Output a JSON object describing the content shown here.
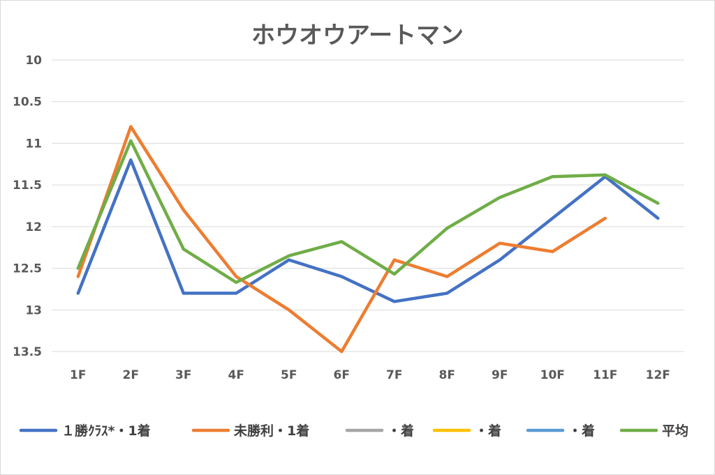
{
  "chart_data": {
    "type": "line",
    "title": "ホウオウアートマン",
    "categories": [
      "1F",
      "2F",
      "3F",
      "4F",
      "5F",
      "6F",
      "7F",
      "8F",
      "9F",
      "10F",
      "11F",
      "12F"
    ],
    "y_axis": {
      "reversed": true,
      "ylim": [
        10,
        13.5
      ],
      "ticks": [
        "10",
        "10.5",
        "11",
        "11.5",
        "12",
        "12.5",
        "13",
        "13.5"
      ],
      "grid": true
    },
    "legend_position": "bottom",
    "series": [
      {
        "name": "１勝ｸﾗｽ*・1着",
        "color": "#4472C4",
        "values": [
          12.8,
          11.2,
          12.8,
          12.8,
          12.4,
          12.6,
          12.9,
          12.8,
          12.4,
          11.9,
          11.4,
          11.9
        ]
      },
      {
        "name": "未勝利・1着",
        "color": "#ED7D31",
        "values": [
          12.6,
          10.8,
          11.8,
          12.6,
          13.0,
          13.5,
          12.4,
          12.6,
          12.2,
          12.3,
          11.9,
          null
        ]
      },
      {
        "name": "・着",
        "color": "#A5A5A5",
        "values": [
          null,
          null,
          null,
          null,
          null,
          null,
          null,
          null,
          null,
          null,
          null,
          null
        ]
      },
      {
        "name": "・着",
        "color": "#FFC000",
        "values": [
          null,
          null,
          null,
          null,
          null,
          null,
          null,
          null,
          null,
          null,
          null,
          null
        ]
      },
      {
        "name": "・着",
        "color": "#5B9BD5",
        "values": [
          null,
          null,
          null,
          null,
          null,
          null,
          null,
          null,
          null,
          null,
          null,
          null
        ]
      },
      {
        "name": "平均",
        "color": "#70AD47",
        "values": [
          12.5,
          10.97,
          12.27,
          12.67,
          12.35,
          12.18,
          12.57,
          12.02,
          11.65,
          11.4,
          11.38,
          11.72
        ]
      }
    ]
  }
}
